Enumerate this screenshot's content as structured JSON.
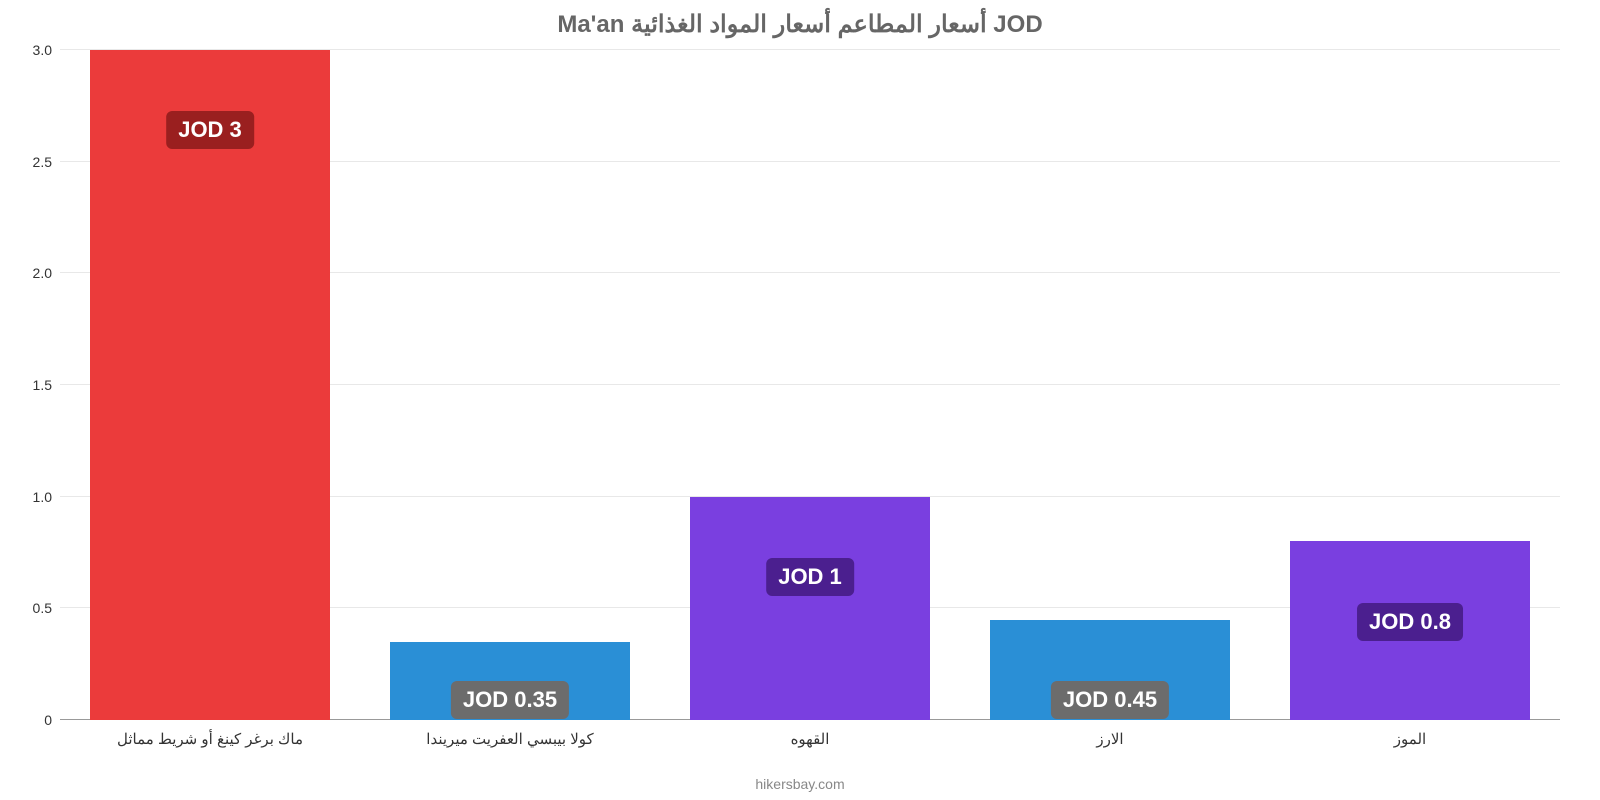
{
  "chart": {
    "type": "bar",
    "title": "Ma'an أسعار المطاعم أسعار المواد الغذائية JOD",
    "title_color": "#666666",
    "title_fontsize": 24,
    "background_color": "#ffffff",
    "grid_color": "#e8e8e8",
    "baseline_color": "#999999",
    "ylim": [
      0,
      3.0
    ],
    "ytick_step": 0.5,
    "yticks": [
      {
        "v": 0,
        "label": "0"
      },
      {
        "v": 0.5,
        "label": "0.5"
      },
      {
        "v": 1.0,
        "label": "1.0"
      },
      {
        "v": 1.5,
        "label": "1.5"
      },
      {
        "v": 2.0,
        "label": "2.0"
      },
      {
        "v": 2.5,
        "label": "2.5"
      },
      {
        "v": 3.0,
        "label": "3.0"
      }
    ],
    "label_fontsize": 14,
    "xlabel_fontsize": 15,
    "bar_width": 0.8,
    "categories": [
      "ماك برغر كينغ أو شريط مماثل",
      "كولا بيبسي العفريت ميريندا",
      "القهوه",
      "الارز",
      "الموز"
    ],
    "values": [
      3,
      0.35,
      1,
      0.45,
      0.8
    ],
    "value_labels": [
      "JOD 3",
      "JOD 0.35",
      "JOD 1",
      "JOD 0.45",
      "JOD 0.8"
    ],
    "bar_colors": [
      "#eb3b3b",
      "#2a8fd6",
      "#7a3fe0",
      "#2a8fd6",
      "#7a3fe0"
    ],
    "badge_bg_colors": [
      "#9a1f1f",
      "#6c6c6c",
      "#4b1f8f",
      "#6c6c6c",
      "#4b1f8f"
    ],
    "badge_text_color": "#ffffff",
    "badge_fontsize": 22,
    "credit": "hikersbay.com",
    "credit_color": "#888888"
  }
}
